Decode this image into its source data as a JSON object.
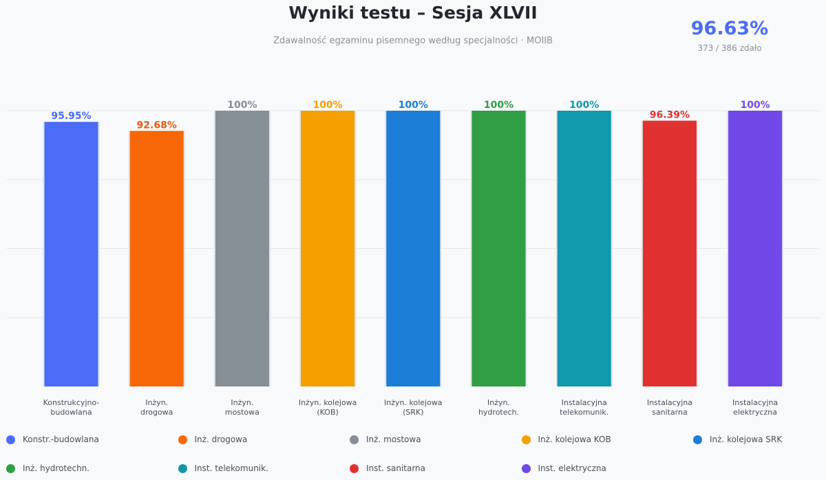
{
  "header": {
    "title": "Wyniki testu – Sesja XLVII",
    "subtitle": "Zdawalność egzaminu pisemnego według specjalności · MOIIB"
  },
  "kpi": {
    "value": "96.63%",
    "detail": "373 / 386 zdało",
    "color": "#4a6cf7"
  },
  "chart_data": {
    "type": "bar",
    "title": "",
    "xlabel": "",
    "ylabel": "",
    "ylim": [
      0,
      100
    ],
    "grid": true,
    "legend_position": "bottom",
    "categories": [
      [
        "Konstrukcyjno-",
        "budowlana"
      ],
      [
        "Inżyn.",
        "drogowa"
      ],
      [
        "Inżyn.",
        "mostowa"
      ],
      [
        "Inżyn. kolejowa",
        "(KOB)"
      ],
      [
        "Inżyn. kolejowa",
        "(SRK)"
      ],
      [
        "Inżyn.",
        "hydrotech."
      ],
      [
        "Instalacyjna",
        "telekomunik."
      ],
      [
        "Instalacyjna",
        "sanitarna"
      ],
      [
        "Instalacyjna",
        "elektryczna"
      ]
    ],
    "values": [
      95.95,
      92.68,
      100,
      100,
      100,
      100,
      100,
      96.39,
      100
    ],
    "value_labels": [
      "95.95%",
      "92.68%",
      "100%",
      "100%",
      "100%",
      "100%",
      "100%",
      "96.39%",
      "100%"
    ],
    "colors": [
      "#4a6cf7",
      "#f76707",
      "#868e96",
      "#f59f00",
      "#1c7ed6",
      "#2f9e44",
      "#1098ad",
      "#e03131",
      "#7048e8"
    ],
    "label_colors": [
      "#4a6cf7",
      "#e8590c",
      "#868e96",
      "#f59f00",
      "#1c7ed6",
      "#2f9e44",
      "#1098ad",
      "#e03131",
      "#7048e8"
    ],
    "legend": [
      "Konstr.-budowlana",
      "Inż. drogowa",
      "Inż. mostowa",
      "Inż. kolejowa KOB",
      "Inż. kolejowa SRK",
      "Inż. hydrotechn.",
      "Inst. telekomunik.",
      "Inst. sanitarna",
      "Inst. elektryczna"
    ]
  }
}
